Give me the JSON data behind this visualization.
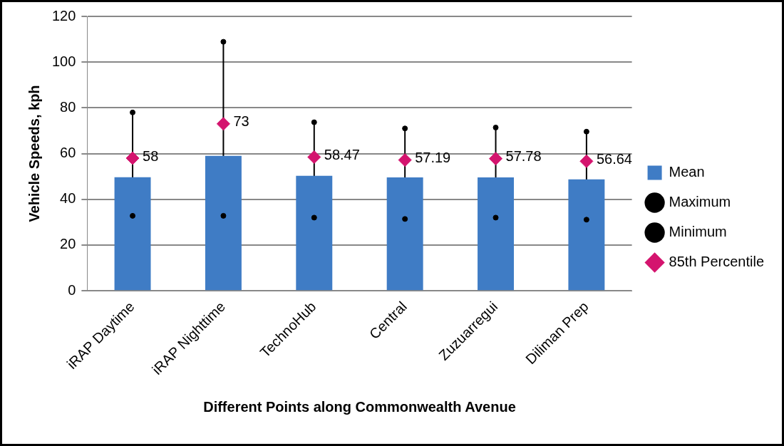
{
  "chart_data": {
    "type": "bar",
    "xlabel": "Different Points along Commonwealth Avenue",
    "ylabel": "Vehicle Speeds, kph",
    "categories": [
      "iRAP Daytime",
      "iRAP Nighttime",
      "TechnoHub",
      "Central",
      "Zuzuarregui",
      "Diliman Prep"
    ],
    "series": [
      {
        "name": "Mean",
        "color": "#3f7cc5",
        "values": [
          49.7,
          59.0,
          50.3,
          49.6,
          49.6,
          48.7
        ]
      },
      {
        "name": "Maximum",
        "type": "scatter",
        "marker": "circle",
        "color": "#000000",
        "values": [
          78,
          108.9,
          73.7,
          71,
          71.4,
          69.6
        ]
      },
      {
        "name": "Minimum",
        "type": "scatter",
        "marker": "circle",
        "color": "#000000",
        "values": [
          32.8,
          32.8,
          32,
          31.4,
          32,
          31.1
        ]
      },
      {
        "name": "85th Percentile",
        "type": "scatter",
        "marker": "diamond",
        "color": "#d4146e",
        "values": [
          58,
          73,
          58.47,
          57.19,
          57.78,
          56.64
        ],
        "value_labels": [
          "58",
          "73",
          "58.47",
          "57.19",
          "57.78",
          "56.64"
        ]
      }
    ],
    "ylim": [
      0,
      120
    ],
    "yticks": [
      0,
      20,
      40,
      60,
      80,
      100,
      120
    ],
    "grid": "y",
    "legend": "right"
  }
}
